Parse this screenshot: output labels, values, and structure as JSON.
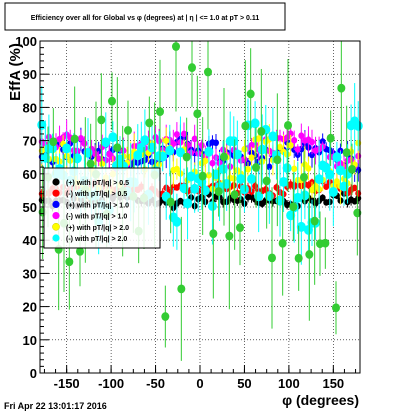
{
  "chart_data": {
    "type": "scatter",
    "title": "Efficiency over all for Global vs φ (degrees) at | η | <= 1.0 at pT > 0.11",
    "xlabel": "φ (degrees)",
    "ylabel": "EffA (%)",
    "xlim": [
      -180,
      180
    ],
    "ylim": [
      0,
      100
    ],
    "x_ticks": [
      -150,
      -100,
      -50,
      0,
      50,
      100,
      150
    ],
    "y_ticks": [
      0,
      10,
      20,
      30,
      40,
      50,
      60,
      70,
      80,
      90,
      100
    ],
    "grid": true,
    "legend_position": "left-middle",
    "timestamp": "Fri Apr 22 13:01:17 2016",
    "series": [
      {
        "name": "(+) with pT/|q| > 0.5",
        "color": "#000000",
        "pattern": "flat",
        "base": 52,
        "amp": 0.8,
        "spread": 1.5,
        "err": 1.2
      },
      {
        "name": "(-) with pT/|q| > 0.5",
        "color": "#ff0000",
        "pattern": "flat",
        "base": 55.5,
        "amp": 0.8,
        "spread": 1.5,
        "err": 1.2
      },
      {
        "name": "(+) with pT/|q| > 1.0",
        "color": "#0000ff",
        "pattern": "flat",
        "base": 66,
        "amp": 2.5,
        "spread": 3,
        "err": 3
      },
      {
        "name": "(-) with pT/|q| > 1.0",
        "color": "#ff00ff",
        "pattern": "flat",
        "base": 67,
        "amp": 2.5,
        "spread": 3,
        "err": 3
      },
      {
        "name": "(+) with pT/|q| > 2.0",
        "color": "#ffff00",
        "pattern": "flat",
        "base": 63,
        "amp": 4,
        "spread": 5,
        "err": 4
      },
      {
        "name": "(-) with pT/|q| > 2.0",
        "color": "#00ffff",
        "pattern": "flat",
        "base": 60,
        "amp": 5,
        "spread": 12,
        "err": 8
      },
      {
        "name": "",
        "color": "#33cc33",
        "pattern": "scatter",
        "base": 60,
        "amp": 5,
        "spread": 24,
        "err": 15
      }
    ]
  }
}
